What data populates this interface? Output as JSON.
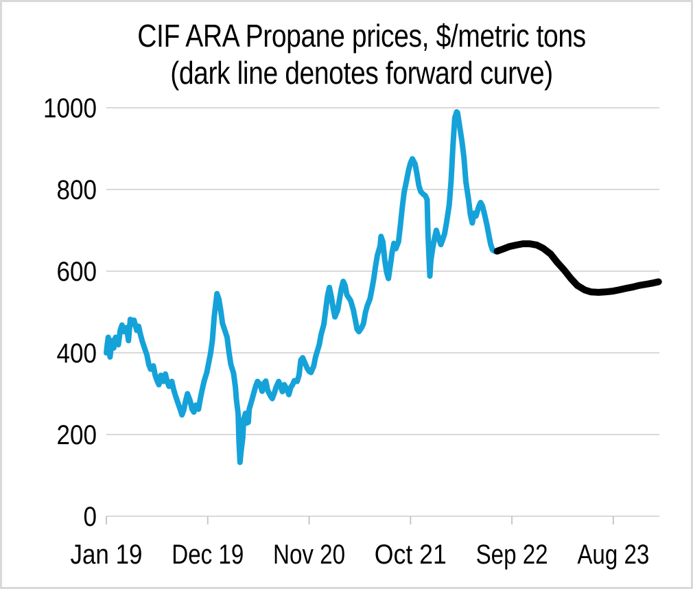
{
  "colors": {
    "background": "#ffffff",
    "frame_border": "#d9d9d9",
    "gridline": "#d9d9d9",
    "tick_mark": "#c8c8c8",
    "text": "#000000",
    "historical_line": "#15a2d9",
    "forward_line": "#000000"
  },
  "chart_data": {
    "type": "line",
    "title": "CIF ARA Propane prices, $/metric tons",
    "subtitle": "(dark line denotes forward curve)",
    "xlabel": "",
    "ylabel": "",
    "grid": "horizontal-only",
    "legend_position": "none",
    "ylim": [
      0,
      1000
    ],
    "y_ticks": [
      0,
      200,
      400,
      600,
      800,
      1000
    ],
    "x_unit": "months-since-Jan-2019",
    "x_range": [
      0,
      60
    ],
    "x_tick_months": [
      0,
      11,
      22,
      33,
      44,
      55
    ],
    "x_tick_labels": [
      "Jan 19",
      "Dec 19",
      "Nov 20",
      "Oct 21",
      "Sep 22",
      "Aug 23"
    ],
    "series": [
      {
        "name": "historical-price",
        "color": "#15a2d9",
        "stroke_width": 8,
        "points": [
          [
            0,
            400
          ],
          [
            0.1,
            420
          ],
          [
            0.2,
            438
          ],
          [
            0.4,
            390
          ],
          [
            0.6,
            430
          ],
          [
            0.8,
            412
          ],
          [
            1,
            438
          ],
          [
            1.3,
            420
          ],
          [
            1.5,
            455
          ],
          [
            1.7,
            468
          ],
          [
            1.9,
            452
          ],
          [
            2.2,
            462
          ],
          [
            2.4,
            430
          ],
          [
            2.6,
            482
          ],
          [
            2.8,
            470
          ],
          [
            3,
            480
          ],
          [
            3.3,
            455
          ],
          [
            3.5,
            465
          ],
          [
            3.7,
            445
          ],
          [
            3.9,
            428
          ],
          [
            4.2,
            408
          ],
          [
            4.4,
            395
          ],
          [
            4.6,
            372
          ],
          [
            4.8,
            360
          ],
          [
            5.1,
            368
          ],
          [
            5.3,
            345
          ],
          [
            5.5,
            332
          ],
          [
            5.7,
            322
          ],
          [
            5.9,
            345
          ],
          [
            6.2,
            330
          ],
          [
            6.4,
            348
          ],
          [
            6.6,
            330
          ],
          [
            6.8,
            318
          ],
          [
            7.1,
            330
          ],
          [
            7.3,
            310
          ],
          [
            7.5,
            295
          ],
          [
            7.7,
            282
          ],
          [
            8,
            262
          ],
          [
            8.2,
            248
          ],
          [
            8.4,
            260
          ],
          [
            8.6,
            282
          ],
          [
            8.8,
            300
          ],
          [
            9.1,
            282
          ],
          [
            9.3,
            262
          ],
          [
            9.5,
            255
          ],
          [
            9.7,
            272
          ],
          [
            10,
            262
          ],
          [
            10.2,
            288
          ],
          [
            10.4,
            310
          ],
          [
            10.6,
            330
          ],
          [
            10.9,
            352
          ],
          [
            11.1,
            375
          ],
          [
            11.3,
            398
          ],
          [
            11.5,
            430
          ],
          [
            11.7,
            488
          ],
          [
            12,
            545
          ],
          [
            12.2,
            532
          ],
          [
            12.4,
            505
          ],
          [
            12.6,
            472
          ],
          [
            12.9,
            452
          ],
          [
            13.1,
            438
          ],
          [
            13.3,
            402
          ],
          [
            13.5,
            372
          ],
          [
            13.8,
            350
          ],
          [
            14,
            316
          ],
          [
            14.1,
            288
          ],
          [
            14.3,
            250
          ],
          [
            14.4,
            180
          ],
          [
            14.5,
            132
          ],
          [
            14.6,
            155
          ],
          [
            14.8,
            192
          ],
          [
            14.9,
            238
          ],
          [
            15.1,
            252
          ],
          [
            15.2,
            228
          ],
          [
            15.4,
            230
          ],
          [
            15.5,
            262
          ],
          [
            15.8,
            285
          ],
          [
            16,
            302
          ],
          [
            16.2,
            318
          ],
          [
            16.4,
            330
          ],
          [
            16.7,
            322
          ],
          [
            16.9,
            306
          ],
          [
            17.1,
            325
          ],
          [
            17.3,
            331
          ],
          [
            17.5,
            308
          ],
          [
            17.8,
            295
          ],
          [
            18,
            288
          ],
          [
            18.2,
            300
          ],
          [
            18.4,
            315
          ],
          [
            18.7,
            330
          ],
          [
            18.9,
            318
          ],
          [
            19.1,
            305
          ],
          [
            19.3,
            322
          ],
          [
            19.6,
            310
          ],
          [
            19.8,
            298
          ],
          [
            20,
            315
          ],
          [
            20.2,
            322
          ],
          [
            20.4,
            332
          ],
          [
            20.7,
            330
          ],
          [
            20.9,
            345
          ],
          [
            21.1,
            382
          ],
          [
            21.3,
            388
          ],
          [
            21.6,
            372
          ],
          [
            21.8,
            362
          ],
          [
            22,
            355
          ],
          [
            22.2,
            352
          ],
          [
            22.5,
            368
          ],
          [
            22.7,
            390
          ],
          [
            22.9,
            405
          ],
          [
            23.1,
            420
          ],
          [
            23.3,
            445
          ],
          [
            23.6,
            470
          ],
          [
            23.8,
            505
          ],
          [
            24,
            540
          ],
          [
            24.2,
            560
          ],
          [
            24.4,
            538
          ],
          [
            24.6,
            510
          ],
          [
            24.8,
            488
          ],
          [
            25.1,
            505
          ],
          [
            25.3,
            532
          ],
          [
            25.5,
            558
          ],
          [
            25.7,
            575
          ],
          [
            25.9,
            565
          ],
          [
            26.1,
            542
          ],
          [
            26.3,
            535
          ],
          [
            26.5,
            528
          ],
          [
            26.8,
            505
          ],
          [
            27,
            482
          ],
          [
            27.2,
            458
          ],
          [
            27.4,
            452
          ],
          [
            27.7,
            462
          ],
          [
            27.9,
            472
          ],
          [
            28.1,
            498
          ],
          [
            28.3,
            515
          ],
          [
            28.6,
            532
          ],
          [
            28.8,
            555
          ],
          [
            29,
            580
          ],
          [
            29.2,
            612
          ],
          [
            29.4,
            638
          ],
          [
            29.7,
            662
          ],
          [
            29.8,
            685
          ],
          [
            30,
            672
          ],
          [
            30.2,
            628
          ],
          [
            30.4,
            598
          ],
          [
            30.6,
            582
          ],
          [
            30.8,
            612
          ],
          [
            31,
            645
          ],
          [
            31.2,
            668
          ],
          [
            31.4,
            655
          ],
          [
            31.7,
            672
          ],
          [
            31.9,
            712
          ],
          [
            32.1,
            755
          ],
          [
            32.3,
            792
          ],
          [
            32.6,
            825
          ],
          [
            32.8,
            848
          ],
          [
            33,
            865
          ],
          [
            33.2,
            875
          ],
          [
            33.5,
            862
          ],
          [
            33.7,
            838
          ],
          [
            33.9,
            810
          ],
          [
            34.1,
            795
          ],
          [
            34.4,
            788
          ],
          [
            34.6,
            785
          ],
          [
            34.8,
            775
          ],
          [
            34.9,
            690
          ],
          [
            35.1,
            588
          ],
          [
            35.2,
            625
          ],
          [
            35.4,
            655
          ],
          [
            35.6,
            680
          ],
          [
            35.8,
            700
          ],
          [
            36.1,
            678
          ],
          [
            36.3,
            665
          ],
          [
            36.5,
            678
          ],
          [
            36.7,
            692
          ],
          [
            36.9,
            718
          ],
          [
            37.2,
            762
          ],
          [
            37.4,
            820
          ],
          [
            37.6,
            905
          ],
          [
            37.8,
            975
          ],
          [
            38,
            990
          ],
          [
            38.1,
            988
          ],
          [
            38.4,
            945
          ],
          [
            38.6,
            915
          ],
          [
            38.8,
            878
          ],
          [
            39,
            820
          ],
          [
            39.3,
            775
          ],
          [
            39.5,
            738
          ],
          [
            39.7,
            718
          ],
          [
            39.9,
            742
          ],
          [
            40.1,
            735
          ],
          [
            40.4,
            758
          ],
          [
            40.6,
            768
          ],
          [
            40.8,
            760
          ],
          [
            41,
            742
          ],
          [
            41.3,
            712
          ],
          [
            41.5,
            688
          ],
          [
            41.7,
            665
          ],
          [
            41.9,
            652
          ],
          [
            42.2,
            648
          ],
          [
            42.4,
            649
          ]
        ]
      },
      {
        "name": "forward-curve",
        "color": "#000000",
        "stroke_width": 10,
        "points": [
          [
            42.4,
            649
          ],
          [
            43,
            654
          ],
          [
            43.7,
            660
          ],
          [
            44.5,
            664
          ],
          [
            45.2,
            667
          ],
          [
            45.9,
            667
          ],
          [
            46.7,
            664
          ],
          [
            47.4,
            656
          ],
          [
            48.2,
            642
          ],
          [
            48.9,
            622
          ],
          [
            49.7,
            602
          ],
          [
            50.4,
            582
          ],
          [
            51.1,
            565
          ],
          [
            51.9,
            554
          ],
          [
            52.6,
            549
          ],
          [
            53.4,
            548
          ],
          [
            54.1,
            549
          ],
          [
            54.9,
            551
          ],
          [
            55.6,
            554
          ],
          [
            56.4,
            558
          ],
          [
            57.1,
            561
          ],
          [
            57.8,
            565
          ],
          [
            58.6,
            568
          ],
          [
            59.3,
            571
          ],
          [
            59.9,
            574
          ]
        ]
      }
    ]
  }
}
